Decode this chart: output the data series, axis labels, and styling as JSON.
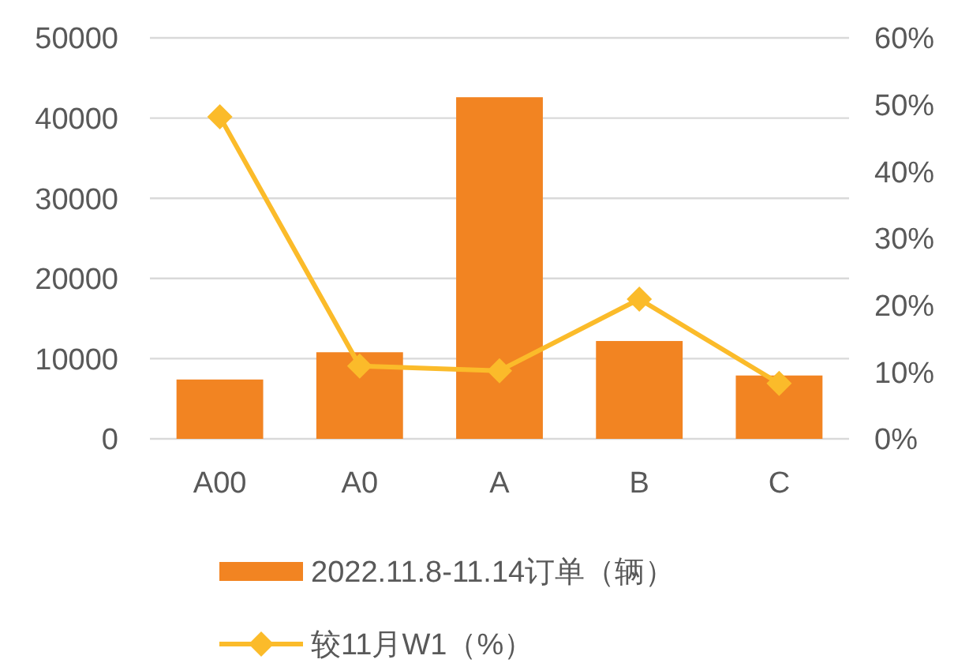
{
  "chart_data": {
    "type": "bar",
    "categories": [
      "A00",
      "A0",
      "A",
      "B",
      "C"
    ],
    "series": [
      {
        "name": "2022.11.8-11.14订单（辆）",
        "color": "#f28422",
        "values": [
          7400,
          10800,
          42600,
          12200,
          7900
        ]
      },
      {
        "name": "较11月W1（%）",
        "type": "line",
        "axis": "y2",
        "color": "#fbbb2a",
        "marker": "diamond",
        "values": [
          48.2,
          10.9,
          10.2,
          20.9,
          8.3
        ]
      }
    ],
    "ylim": [
      0,
      50000
    ],
    "yticks": [
      0,
      10000,
      20000,
      30000,
      40000,
      50000
    ],
    "y2lim": [
      0,
      60
    ],
    "y2ticks": [
      {
        "value": 0,
        "label": "0%"
      },
      {
        "value": 10,
        "label": "10%"
      },
      {
        "value": 20,
        "label": "20%"
      },
      {
        "value": 30,
        "label": "30%"
      },
      {
        "value": 40,
        "label": "40%"
      },
      {
        "value": 50,
        "label": "50%"
      },
      {
        "value": 60,
        "label": "60%"
      }
    ],
    "grid": "y",
    "legend": "bottom"
  }
}
